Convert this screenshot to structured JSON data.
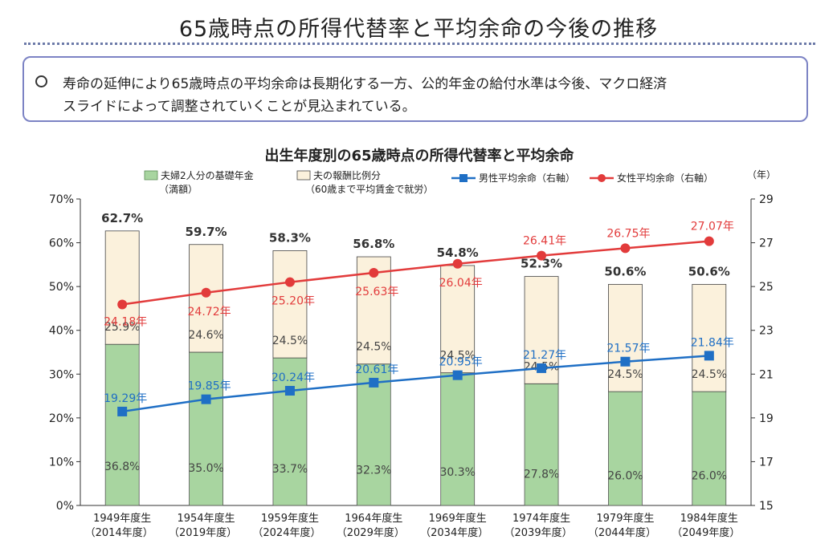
{
  "page": {
    "title": "65歳時点の所得代替率と平均余命の今後の推移",
    "summary_bullet": "○",
    "summary_lines": [
      "寿命の延伸により65歳時点の平均余命は長期化する一方、公的年金の給付水準は今後、マクロ経済",
      "スライドによって調整されていくことが見込まれている。"
    ]
  },
  "chart_data": {
    "type": "bar",
    "title": "出生年度別の65歳時点の所得代替率と平均余命",
    "categories": [
      "1949年度生",
      "1954年度生",
      "1959年度生",
      "1964年度生",
      "1969年度生",
      "1974年度生",
      "1979年度生",
      "1984年度生"
    ],
    "category_sublabels": [
      "（2014年度）",
      "（2019年度）",
      "（2024年度）",
      "（2029年度）",
      "（2034年度）",
      "（2039年度）",
      "（2044年度）",
      "（2049年度）"
    ],
    "left_axis": {
      "min": 0,
      "max": 70,
      "ticks": [
        "0%",
        "10%",
        "20%",
        "30%",
        "40%",
        "50%",
        "60%",
        "70%"
      ]
    },
    "right_axis": {
      "unit": "（年）",
      "min": 15,
      "max": 29,
      "ticks": [
        "15",
        "17",
        "19",
        "21",
        "23",
        "25",
        "27",
        "29"
      ]
    },
    "stacked_series": [
      {
        "name": "夫婦2人分の基礎年金",
        "name_sub": "（満額）",
        "color": "#a8d5a0",
        "values": [
          36.8,
          35.0,
          33.7,
          32.3,
          30.3,
          27.8,
          26.0,
          26.0
        ],
        "labels": [
          "36.8%",
          "35.0%",
          "33.7%",
          "32.3%",
          "30.3%",
          "27.8%",
          "26.0%",
          "26.0%"
        ]
      },
      {
        "name": "夫の報酬比例分",
        "name_sub": "（60歳まで平均賃金で就労）",
        "color": "#fbf1dc",
        "values": [
          25.9,
          24.6,
          24.5,
          24.5,
          24.5,
          24.5,
          24.5,
          24.5
        ],
        "labels": [
          "25.9%",
          "24.6%",
          "24.5%",
          "24.5%",
          "24.5%",
          "24.5%",
          "24.5%",
          "24.5%"
        ]
      }
    ],
    "totals": [
      "62.7%",
      "59.7%",
      "58.3%",
      "56.8%",
      "54.8%",
      "52.3%",
      "50.6%",
      "50.6%"
    ],
    "line_series": [
      {
        "name": "男性平均余命（右軸）",
        "color": "#1f6fc5",
        "marker": "square",
        "values": [
          19.29,
          19.85,
          20.24,
          20.61,
          20.95,
          21.27,
          21.57,
          21.84
        ],
        "labels": [
          "19.29年",
          "19.85年",
          "20.24年",
          "20.61年",
          "20.95年",
          "21.27年",
          "21.57年",
          "21.84年"
        ]
      },
      {
        "name": "女性平均余命（右軸）",
        "color": "#e23b3b",
        "marker": "circle",
        "values": [
          24.18,
          24.72,
          25.2,
          25.63,
          26.04,
          26.41,
          26.75,
          27.07
        ],
        "labels": [
          "24.18年",
          "24.72年",
          "25.20年",
          "25.63年",
          "26.04年",
          "26.41年",
          "26.75年",
          "27.07年"
        ]
      }
    ]
  }
}
